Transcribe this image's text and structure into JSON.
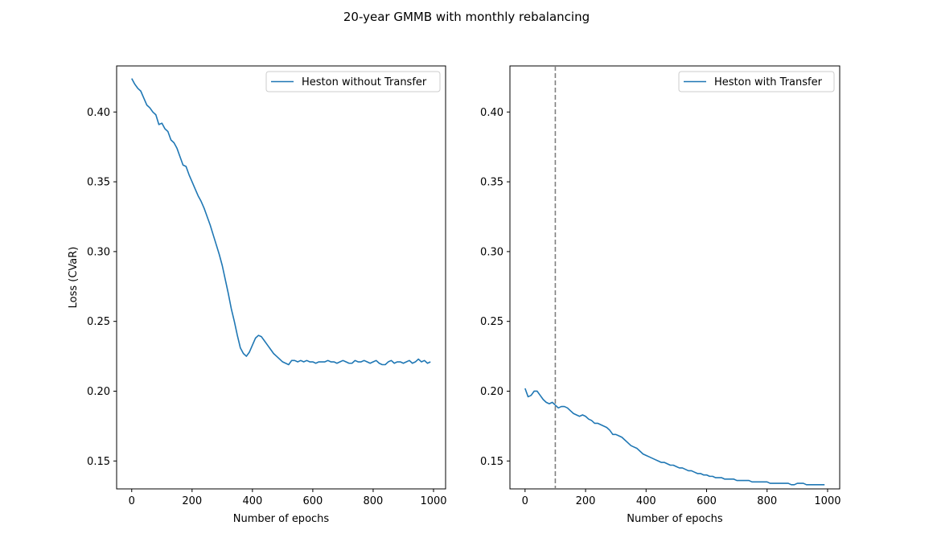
{
  "figure": {
    "title": "20-year GMMB with monthly rebalancing"
  },
  "chart_data": [
    {
      "type": "line",
      "xlabel": "Number of epochs",
      "ylabel": "Loss (CVaR)",
      "xlim": [
        -50,
        1040
      ],
      "ylim": [
        0.13,
        0.433
      ],
      "xticks": [
        0,
        200,
        400,
        600,
        800,
        1000
      ],
      "yticks": [
        0.15,
        0.2,
        0.25,
        0.3,
        0.35,
        0.4
      ],
      "ytick_labels": [
        "0.15",
        "0.20",
        "0.25",
        "0.30",
        "0.35",
        "0.40"
      ],
      "legend_placement": "top-right",
      "grid": false,
      "color": "#1f77b4",
      "series": [
        {
          "name": "Heston without Transfer",
          "x": [
            0,
            10,
            20,
            30,
            40,
            50,
            60,
            70,
            80,
            90,
            100,
            110,
            120,
            130,
            140,
            150,
            160,
            170,
            180,
            190,
            200,
            210,
            220,
            230,
            240,
            250,
            260,
            270,
            280,
            290,
            300,
            310,
            320,
            330,
            340,
            350,
            360,
            370,
            380,
            390,
            400,
            410,
            420,
            430,
            440,
            450,
            460,
            470,
            480,
            490,
            500,
            510,
            520,
            530,
            540,
            550,
            560,
            570,
            580,
            590,
            600,
            610,
            620,
            630,
            640,
            650,
            660,
            670,
            680,
            690,
            700,
            710,
            720,
            730,
            740,
            750,
            760,
            770,
            780,
            790,
            800,
            810,
            820,
            830,
            840,
            850,
            860,
            870,
            880,
            890,
            900,
            910,
            920,
            930,
            940,
            950,
            960,
            970,
            980,
            990
          ],
          "values": [
            0.424,
            0.42,
            0.417,
            0.415,
            0.41,
            0.405,
            0.403,
            0.4,
            0.398,
            0.391,
            0.392,
            0.388,
            0.386,
            0.38,
            0.378,
            0.374,
            0.368,
            0.362,
            0.361,
            0.355,
            0.35,
            0.345,
            0.34,
            0.336,
            0.331,
            0.325,
            0.319,
            0.312,
            0.305,
            0.298,
            0.29,
            0.28,
            0.27,
            0.259,
            0.25,
            0.24,
            0.231,
            0.227,
            0.225,
            0.228,
            0.233,
            0.238,
            0.24,
            0.239,
            0.236,
            0.233,
            0.23,
            0.227,
            0.225,
            0.223,
            0.221,
            0.22,
            0.219,
            0.222,
            0.222,
            0.221,
            0.222,
            0.221,
            0.222,
            0.221,
            0.221,
            0.22,
            0.221,
            0.221,
            0.221,
            0.222,
            0.221,
            0.221,
            0.22,
            0.221,
            0.222,
            0.221,
            0.22,
            0.22,
            0.222,
            0.221,
            0.221,
            0.222,
            0.221,
            0.22,
            0.221,
            0.222,
            0.22,
            0.219,
            0.219,
            0.221,
            0.222,
            0.22,
            0.221,
            0.221,
            0.22,
            0.221,
            0.222,
            0.22,
            0.221,
            0.223,
            0.221,
            0.222,
            0.22,
            0.221
          ]
        }
      ]
    },
    {
      "type": "line",
      "xlabel": "Number of epochs",
      "ylabel": "",
      "xlim": [
        -50,
        1040
      ],
      "ylim": [
        0.13,
        0.433
      ],
      "xticks": [
        0,
        200,
        400,
        600,
        800,
        1000
      ],
      "yticks": [
        0.15,
        0.2,
        0.25,
        0.3,
        0.35,
        0.4
      ],
      "ytick_labels": [
        "0.15",
        "0.20",
        "0.25",
        "0.30",
        "0.35",
        "0.40"
      ],
      "legend_placement": "top-right",
      "grid": false,
      "color": "#1f77b4",
      "vline": {
        "x": 100,
        "style": "dashed",
        "color": "#808080"
      },
      "series": [
        {
          "name": "Heston with Transfer",
          "x": [
            0,
            10,
            20,
            30,
            40,
            50,
            60,
            70,
            80,
            90,
            100,
            110,
            120,
            130,
            140,
            150,
            160,
            170,
            180,
            190,
            200,
            210,
            220,
            230,
            240,
            250,
            260,
            270,
            280,
            290,
            300,
            310,
            320,
            330,
            340,
            350,
            360,
            370,
            380,
            390,
            400,
            410,
            420,
            430,
            440,
            450,
            460,
            470,
            480,
            490,
            500,
            510,
            520,
            530,
            540,
            550,
            560,
            570,
            580,
            590,
            600,
            610,
            620,
            630,
            640,
            650,
            660,
            670,
            680,
            690,
            700,
            710,
            720,
            730,
            740,
            750,
            760,
            770,
            780,
            790,
            800,
            810,
            820,
            830,
            840,
            850,
            860,
            870,
            880,
            890,
            900,
            910,
            920,
            930,
            940,
            950,
            960,
            970,
            980,
            990
          ],
          "values": [
            0.202,
            0.196,
            0.197,
            0.2,
            0.2,
            0.197,
            0.194,
            0.192,
            0.191,
            0.192,
            0.19,
            0.188,
            0.189,
            0.189,
            0.188,
            0.186,
            0.184,
            0.183,
            0.182,
            0.183,
            0.182,
            0.18,
            0.179,
            0.177,
            0.177,
            0.176,
            0.175,
            0.174,
            0.172,
            0.169,
            0.169,
            0.168,
            0.167,
            0.165,
            0.163,
            0.161,
            0.16,
            0.159,
            0.157,
            0.155,
            0.154,
            0.153,
            0.152,
            0.151,
            0.15,
            0.149,
            0.149,
            0.148,
            0.147,
            0.147,
            0.146,
            0.145,
            0.145,
            0.144,
            0.143,
            0.143,
            0.142,
            0.141,
            0.141,
            0.14,
            0.14,
            0.139,
            0.139,
            0.138,
            0.138,
            0.138,
            0.137,
            0.137,
            0.137,
            0.137,
            0.136,
            0.136,
            0.136,
            0.136,
            0.136,
            0.135,
            0.135,
            0.135,
            0.135,
            0.135,
            0.135,
            0.134,
            0.134,
            0.134,
            0.134,
            0.134,
            0.134,
            0.134,
            0.133,
            0.133,
            0.134,
            0.134,
            0.134,
            0.133,
            0.133,
            0.133,
            0.133,
            0.133,
            0.133,
            0.133
          ]
        }
      ]
    }
  ]
}
